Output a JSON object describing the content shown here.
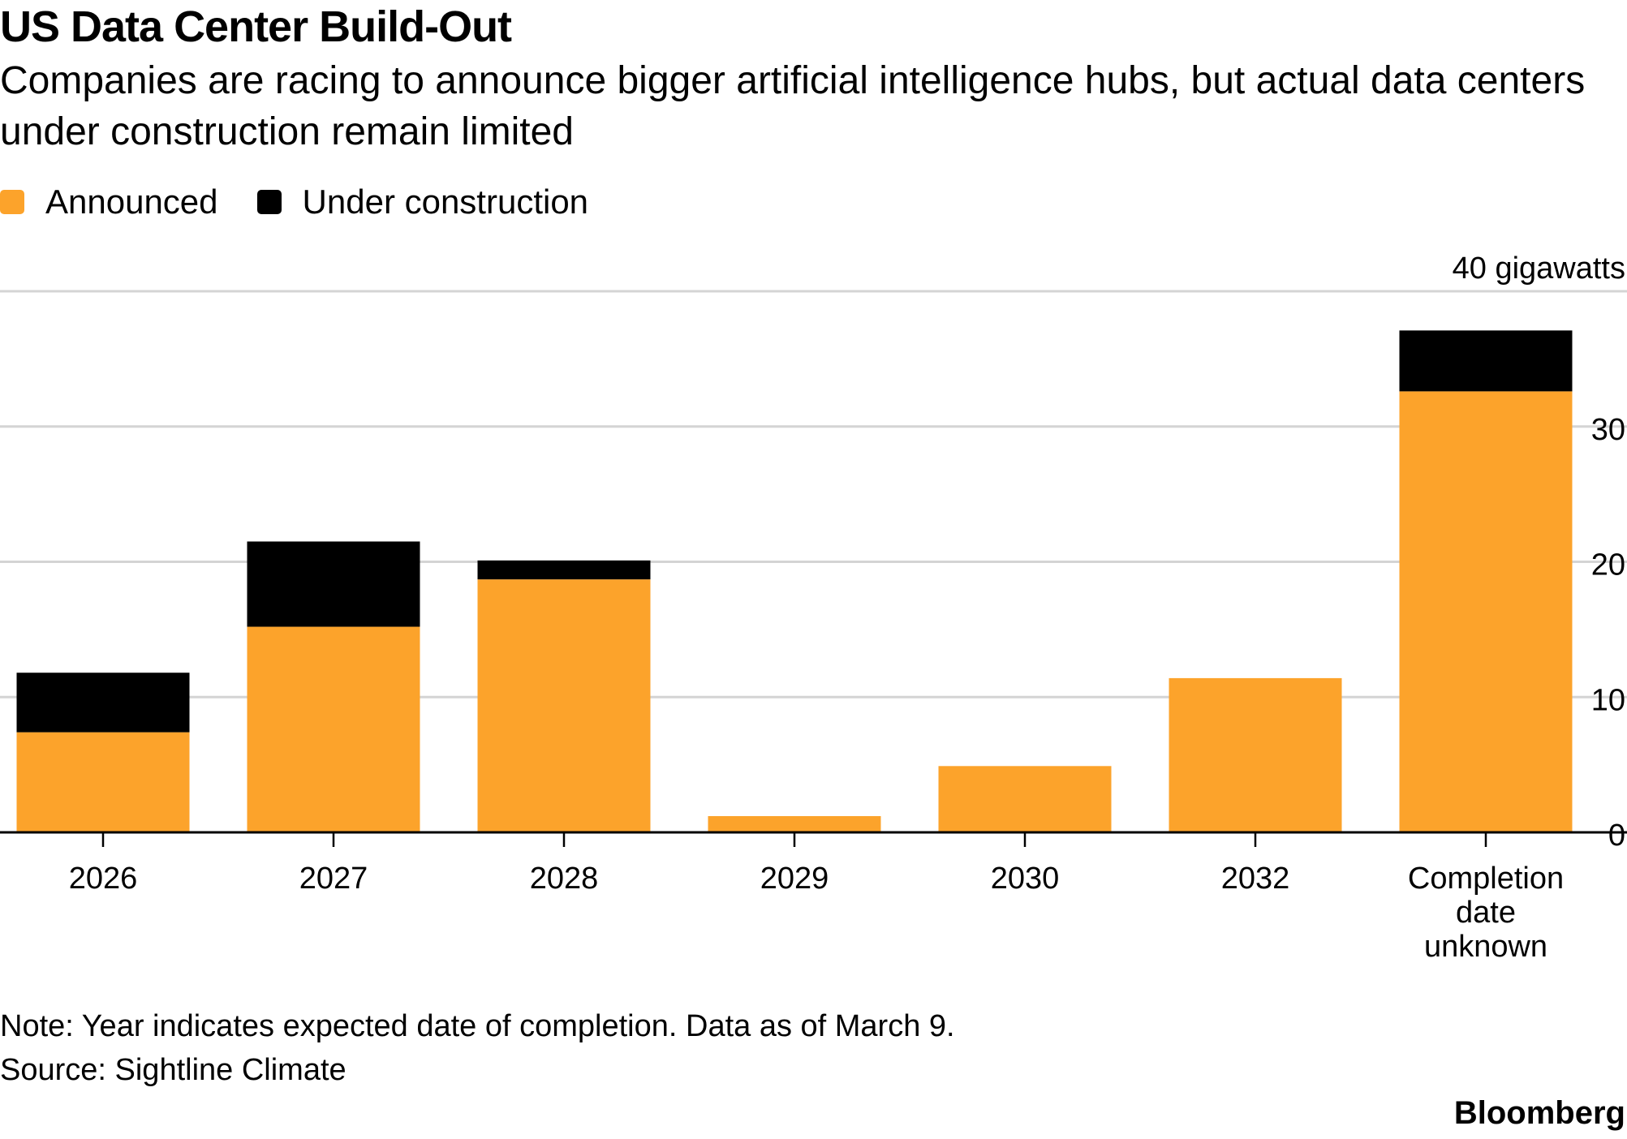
{
  "title": "US Data Center Build-Out",
  "subtitle": "Companies are racing to announce bigger artificial intelligence hubs, but actual data centers under construction remain limited",
  "legend": {
    "announced": "Announced",
    "under_construction": "Under construction"
  },
  "colors": {
    "announced": "#FCA32B",
    "under_construction": "#000000",
    "grid": "#d4d4d4"
  },
  "note": "Note: Year indicates expected date of completion. Data as of March 9.",
  "source": "Source: Sightline Climate",
  "brand": "Bloomberg",
  "chart_data": {
    "type": "bar",
    "stacked": true,
    "categories": [
      "2026",
      "2027",
      "2028",
      "2029",
      "2030",
      "2032",
      "Completion date unknown"
    ],
    "category_lines": [
      [
        "2026"
      ],
      [
        "2027"
      ],
      [
        "2028"
      ],
      [
        "2029"
      ],
      [
        "2030"
      ],
      [
        "2032"
      ],
      [
        "Completion",
        "date",
        "unknown"
      ]
    ],
    "series": [
      {
        "name": "Announced",
        "values": [
          7.4,
          15.2,
          18.7,
          1.2,
          4.9,
          11.4,
          32.6
        ]
      },
      {
        "name": "Under construction",
        "values": [
          4.4,
          6.3,
          1.4,
          0,
          0,
          0,
          4.5
        ]
      }
    ],
    "ylim": [
      0,
      40
    ],
    "yticks": [
      0,
      10,
      20,
      30,
      40
    ],
    "ytick_labels": [
      "0",
      "10",
      "20",
      "30",
      "40 gigawatts"
    ],
    "grid": true,
    "legend_position": "top-left"
  }
}
